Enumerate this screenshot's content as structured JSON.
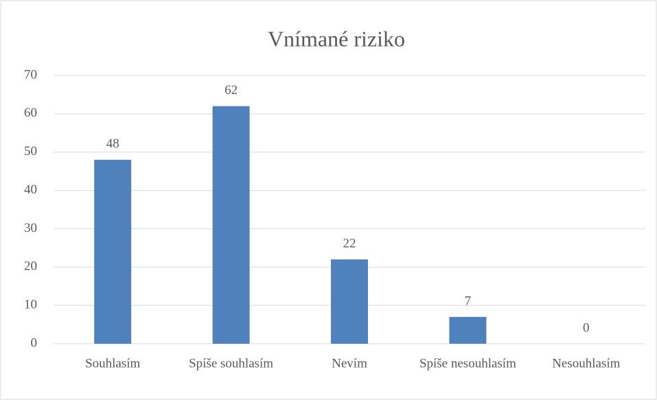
{
  "chart_data": {
    "type": "bar",
    "title": "Vnímané riziko",
    "categories": [
      "Souhlasím",
      "Spíše souhlasím",
      "Nevím",
      "Spíše nesouhlasím",
      "Nesouhlasím"
    ],
    "values": [
      48,
      62,
      22,
      7,
      0
    ],
    "color": "#4f81bd",
    "ylim": [
      0,
      70
    ],
    "yticks": [
      0,
      10,
      20,
      30,
      40,
      50,
      60,
      70
    ],
    "grid": true
  }
}
